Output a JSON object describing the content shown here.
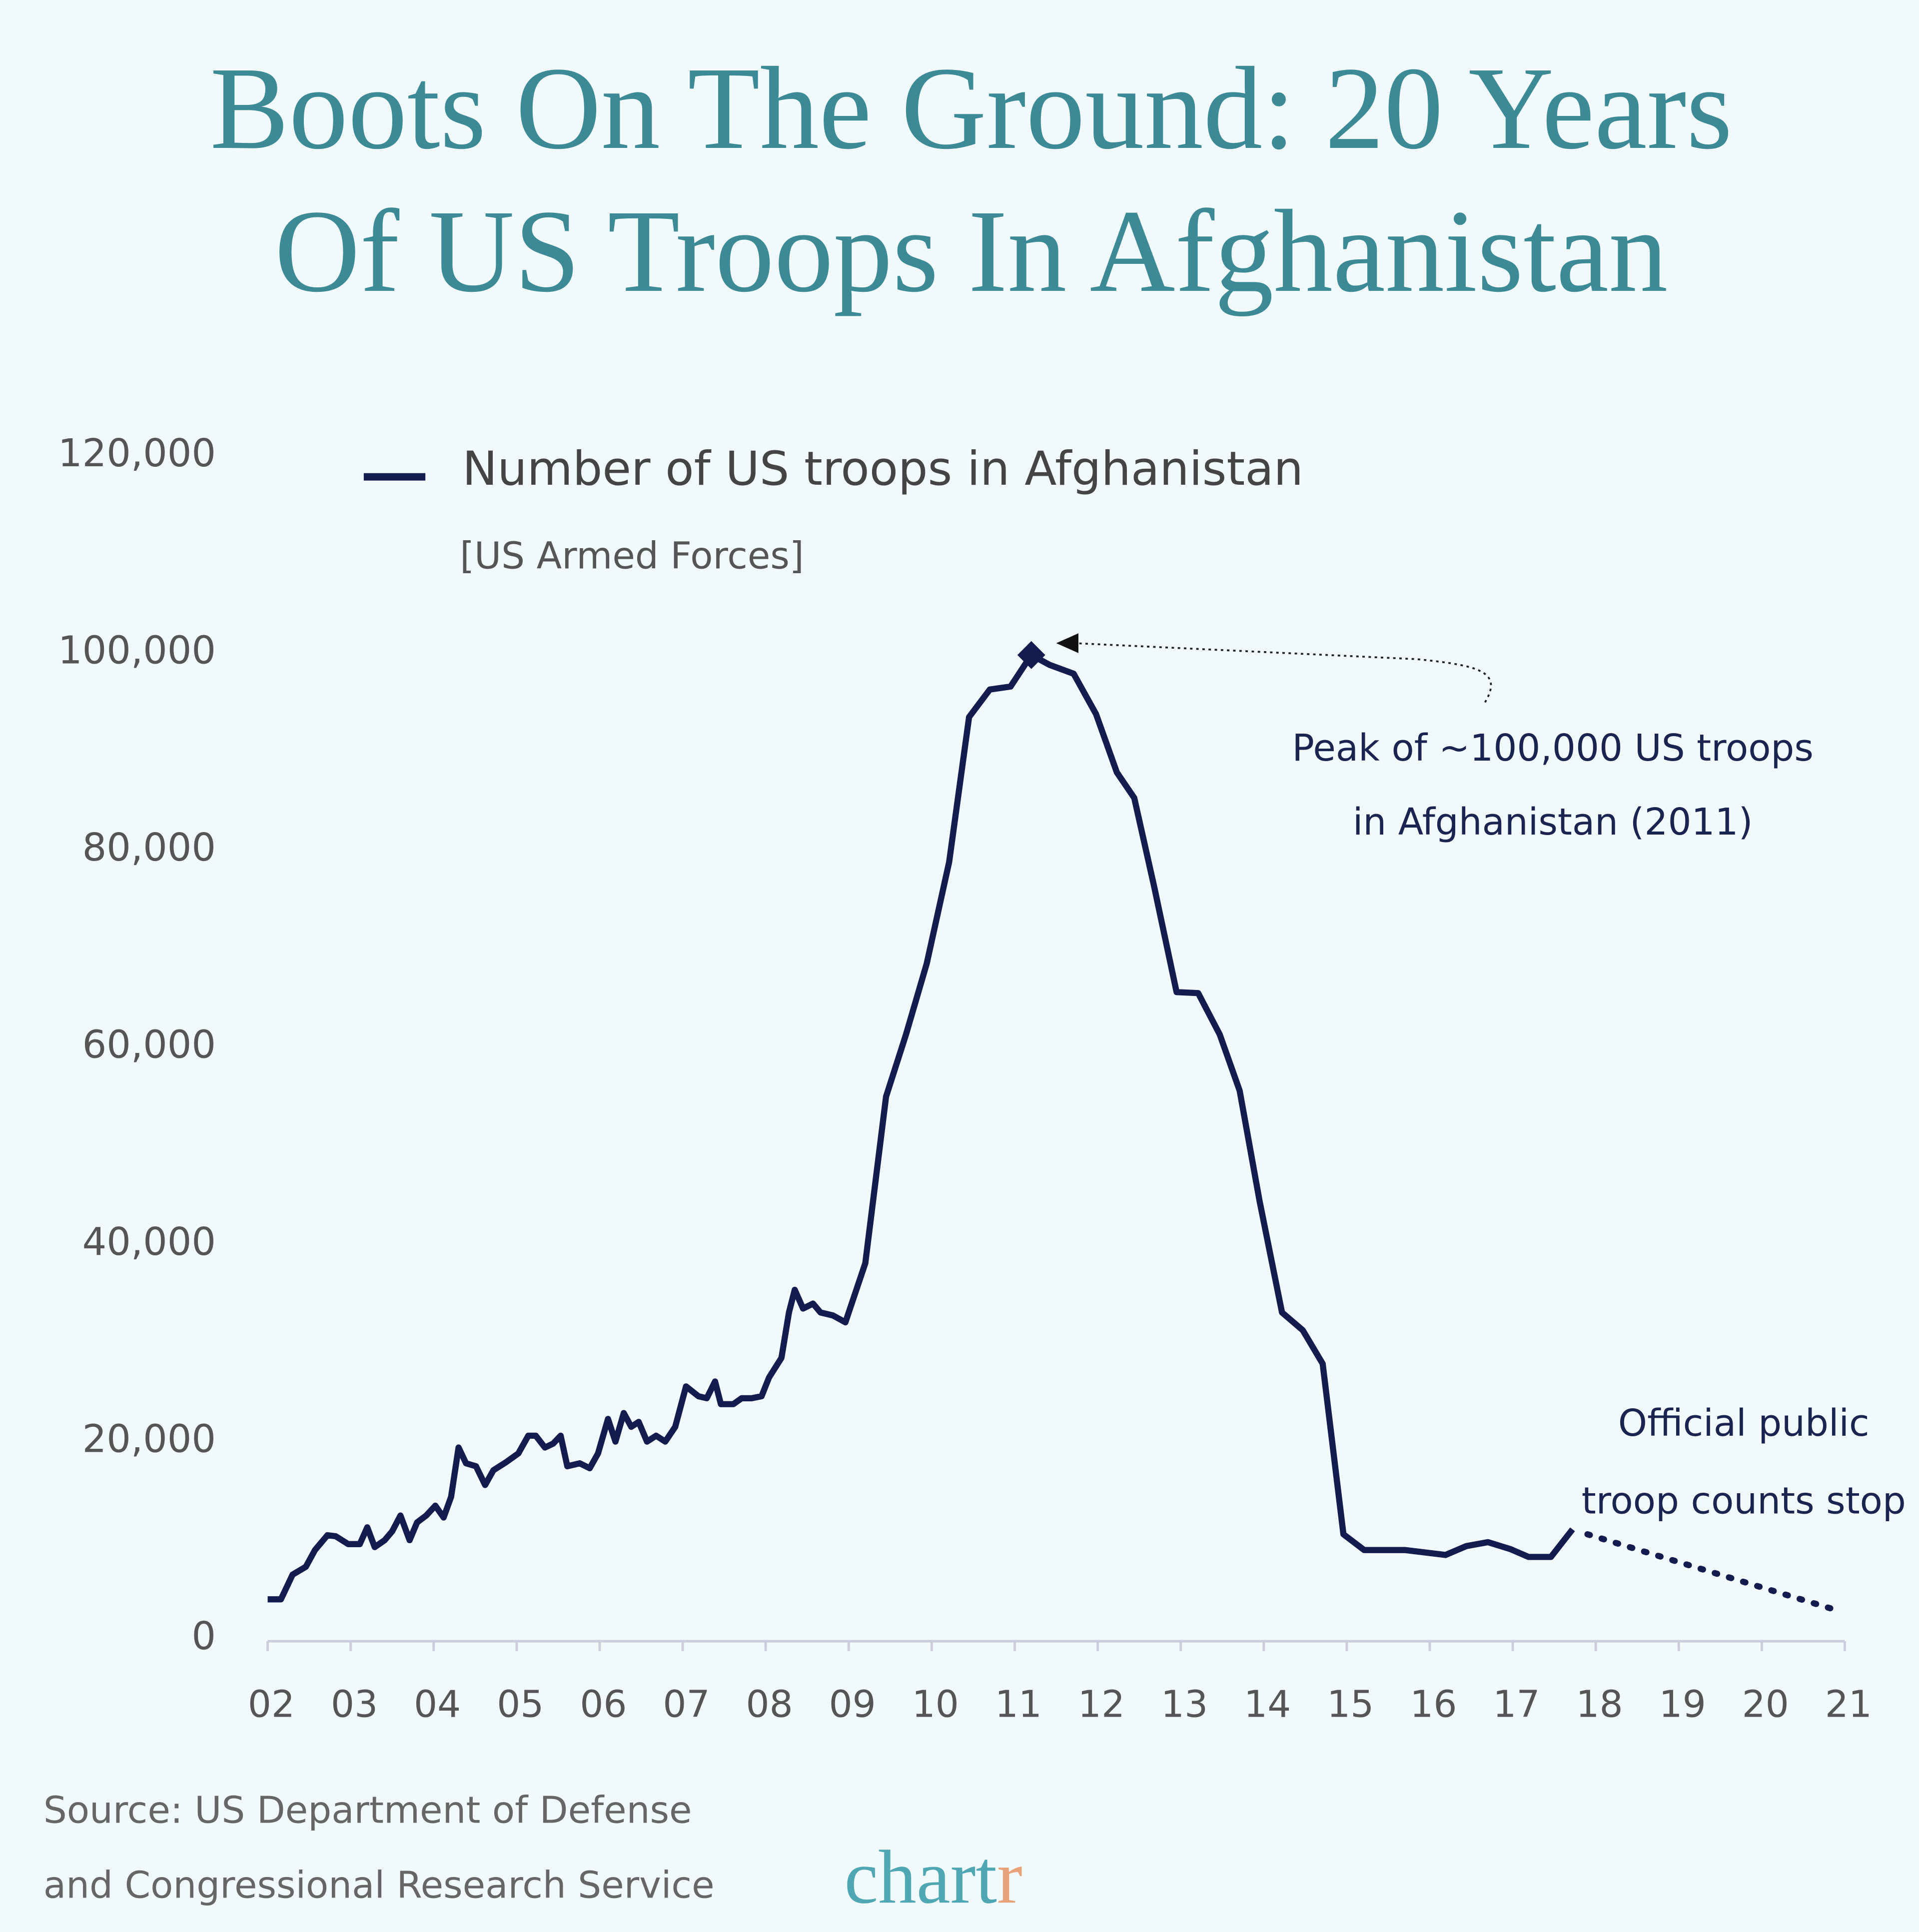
{
  "chart_data": {
    "type": "line",
    "title": [
      "Boots On The Ground: 20 Years",
      "Of US Troops In Afghanistan"
    ],
    "subtitle": "[US Armed Forces]",
    "series": [
      {
        "name": "Number of US troops in Afghanistan",
        "color": "#141c4f",
        "x": [
          2002.0,
          2002.16,
          2002.3,
          2002.46,
          2002.57,
          2002.72,
          2002.82,
          2002.97,
          2003.11,
          2003.2,
          2003.29,
          2003.41,
          2003.5,
          2003.6,
          2003.71,
          2003.8,
          2003.91,
          2004.02,
          2004.12,
          2004.21,
          2004.3,
          2004.39,
          2004.51,
          2004.62,
          2004.72,
          2004.87,
          2005.02,
          2005.14,
          2005.23,
          2005.34,
          2005.44,
          2005.53,
          2005.61,
          2005.76,
          2005.88,
          2005.98,
          2006.1,
          2006.19,
          2006.29,
          2006.38,
          2006.47,
          2006.57,
          2006.68,
          2006.79,
          2006.91,
          2007.04,
          2007.19,
          2007.29,
          2007.39,
          2007.46,
          2007.61,
          2007.71,
          2007.83,
          2007.95,
          2008.04,
          2008.19,
          2008.28,
          2008.35,
          2008.45,
          2008.57,
          2008.66,
          2008.81,
          2008.96,
          2009.2,
          2009.45,
          2009.69,
          2009.94,
          2010.21,
          2010.45,
          2010.7,
          2010.95,
          2011.2,
          2011.42,
          2011.71,
          2011.98,
          2012.23,
          2012.44,
          2012.68,
          2012.95,
          2013.21,
          2013.47,
          2013.71,
          2013.95,
          2014.22,
          2014.47,
          2014.71,
          2014.96,
          2015.21,
          2015.7,
          2016.19,
          2016.44,
          2016.7,
          2016.97,
          2017.19,
          2017.46,
          2017.72
        ],
        "values": [
          4000,
          4000,
          6500,
          7300,
          9000,
          10500,
          10400,
          9600,
          9600,
          11300,
          9300,
          10000,
          10900,
          12500,
          10000,
          11800,
          12500,
          13500,
          12300,
          14400,
          19400,
          17800,
          17500,
          15600,
          17100,
          17900,
          18800,
          20600,
          20600,
          19400,
          19800,
          20600,
          17500,
          17800,
          17300,
          18800,
          22300,
          20000,
          22900,
          21500,
          22000,
          20000,
          20600,
          20000,
          21500,
          25600,
          24600,
          24400,
          26100,
          23800,
          23800,
          24400,
          24400,
          24600,
          26500,
          28500,
          33100,
          35400,
          33500,
          34000,
          33100,
          32800,
          32100,
          38100,
          55000,
          61300,
          68500,
          78800,
          93500,
          96300,
          96600,
          99800,
          98800,
          97900,
          93800,
          87900,
          85300,
          76300,
          65600,
          65500,
          61300,
          55600,
          44400,
          33100,
          31300,
          27900,
          10600,
          9000,
          9000,
          8500,
          9400,
          9800,
          9100,
          8300,
          8300,
          11100
        ]
      }
    ],
    "peak_index": 71,
    "dotted_line": {
      "x": [
        2017.9,
        2020.9
      ],
      "values": [
        10600,
        2900
      ]
    },
    "annotations": [
      {
        "lines": [
          "Peak of ~100,000 US troops",
          "in Afghanistan (2011)"
        ]
      },
      {
        "lines": [
          "Official public",
          "troop counts stop"
        ]
      }
    ],
    "xlim": [
      2002,
      2021
    ],
    "xticks": [
      {
        "value": 2002,
        "label": "02"
      },
      {
        "value": 2003,
        "label": "03"
      },
      {
        "value": 2004,
        "label": "04"
      },
      {
        "value": 2005,
        "label": "05"
      },
      {
        "value": 2006,
        "label": "06"
      },
      {
        "value": 2007,
        "label": "07"
      },
      {
        "value": 2008,
        "label": "08"
      },
      {
        "value": 2009,
        "label": "09"
      },
      {
        "value": 2010,
        "label": "10"
      },
      {
        "value": 2011,
        "label": "11"
      },
      {
        "value": 2012,
        "label": "12"
      },
      {
        "value": 2013,
        "label": "13"
      },
      {
        "value": 2014,
        "label": "14"
      },
      {
        "value": 2015,
        "label": "15"
      },
      {
        "value": 2016,
        "label": "16"
      },
      {
        "value": 2017,
        "label": "17"
      },
      {
        "value": 2018,
        "label": "18"
      },
      {
        "value": 2019,
        "label": "19"
      },
      {
        "value": 2020,
        "label": "20"
      },
      {
        "value": 2021,
        "label": "21"
      }
    ],
    "ylim": [
      0,
      120000
    ],
    "yticks": [
      0,
      {
        "value": 20000,
        "label": "20,000"
      },
      {
        "value": 40000,
        "label": "40,000"
      },
      {
        "value": 60000,
        "label": "60,000"
      },
      {
        "value": 80000,
        "label": "80,000"
      },
      {
        "value": 100000,
        "label": "100,000"
      },
      {
        "value": 120000,
        "label": "120,000"
      }
    ],
    "grid": false,
    "source": [
      "Source: US Department of Defense",
      "and Congressional Research Service"
    ],
    "logo": {
      "text": "chart",
      "accent": "r"
    }
  }
}
